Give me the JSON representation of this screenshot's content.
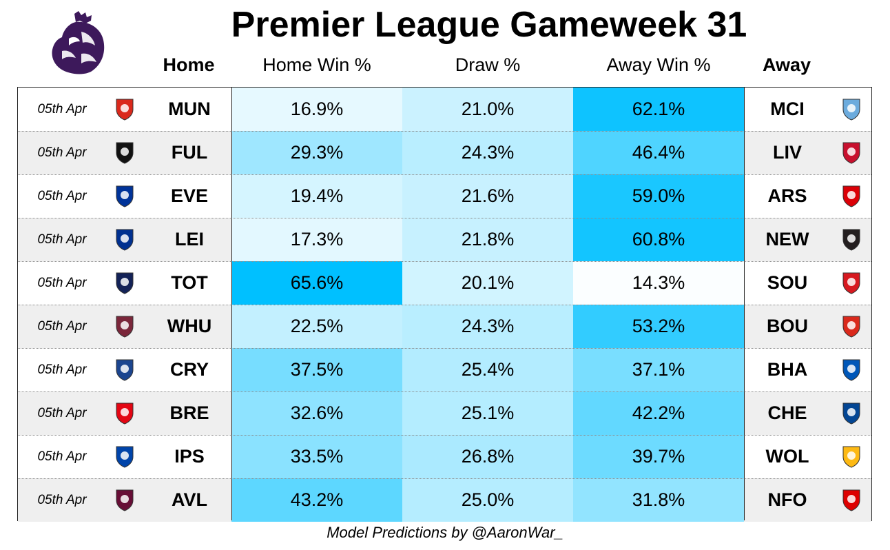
{
  "title": "Premier League Gameweek 31",
  "headers": {
    "home": "Home",
    "home_win": "Home Win %",
    "draw": "Draw %",
    "away_win": "Away Win %",
    "away": "Away"
  },
  "colors": {
    "header_text": "#000000",
    "alt_row": "#efefef",
    "heat_low": "#ffffff",
    "heat_high": "#00c0ff",
    "logo_purple": "#3d195b"
  },
  "matches": [
    {
      "date": "05th Apr",
      "home": "MUN",
      "home_crest": "man-utd-crest",
      "home_win": "16.9%",
      "draw": "21.0%",
      "away_win": "62.1%",
      "away": "MCI",
      "away_crest": "man-city-crest",
      "home_win_v": 16.9,
      "draw_v": 21.0,
      "away_win_v": 62.1
    },
    {
      "date": "05th Apr",
      "home": "FUL",
      "home_crest": "fulham-crest",
      "home_win": "29.3%",
      "draw": "24.3%",
      "away_win": "46.4%",
      "away": "LIV",
      "away_crest": "liverpool-crest",
      "home_win_v": 29.3,
      "draw_v": 24.3,
      "away_win_v": 46.4
    },
    {
      "date": "05th Apr",
      "home": "EVE",
      "home_crest": "everton-crest",
      "home_win": "19.4%",
      "draw": "21.6%",
      "away_win": "59.0%",
      "away": "ARS",
      "away_crest": "arsenal-crest",
      "home_win_v": 19.4,
      "draw_v": 21.6,
      "away_win_v": 59.0
    },
    {
      "date": "05th Apr",
      "home": "LEI",
      "home_crest": "leicester-crest",
      "home_win": "17.3%",
      "draw": "21.8%",
      "away_win": "60.8%",
      "away": "NEW",
      "away_crest": "newcastle-crest",
      "home_win_v": 17.3,
      "draw_v": 21.8,
      "away_win_v": 60.8
    },
    {
      "date": "05th Apr",
      "home": "TOT",
      "home_crest": "tottenham-crest",
      "home_win": "65.6%",
      "draw": "20.1%",
      "away_win": "14.3%",
      "away": "SOU",
      "away_crest": "southampton-crest",
      "home_win_v": 65.6,
      "draw_v": 20.1,
      "away_win_v": 14.3
    },
    {
      "date": "05th Apr",
      "home": "WHU",
      "home_crest": "west-ham-crest",
      "home_win": "22.5%",
      "draw": "24.3%",
      "away_win": "53.2%",
      "away": "BOU",
      "away_crest": "bournemouth-crest",
      "home_win_v": 22.5,
      "draw_v": 24.3,
      "away_win_v": 53.2
    },
    {
      "date": "05th Apr",
      "home": "CRY",
      "home_crest": "crystal-palace-crest",
      "home_win": "37.5%",
      "draw": "25.4%",
      "away_win": "37.1%",
      "away": "BHA",
      "away_crest": "brighton-crest",
      "home_win_v": 37.5,
      "draw_v": 25.4,
      "away_win_v": 37.1
    },
    {
      "date": "05th Apr",
      "home": "BRE",
      "home_crest": "brentford-crest",
      "home_win": "32.6%",
      "draw": "25.1%",
      "away_win": "42.2%",
      "away": "CHE",
      "away_crest": "chelsea-crest",
      "home_win_v": 32.6,
      "draw_v": 25.1,
      "away_win_v": 42.2
    },
    {
      "date": "05th Apr",
      "home": "IPS",
      "home_crest": "ipswich-crest",
      "home_win": "33.5%",
      "draw": "26.8%",
      "away_win": "39.7%",
      "away": "WOL",
      "away_crest": "wolves-crest",
      "home_win_v": 33.5,
      "draw_v": 26.8,
      "away_win_v": 39.7
    },
    {
      "date": "05th Apr",
      "home": "AVL",
      "home_crest": "aston-villa-crest",
      "home_win": "43.2%",
      "draw": "25.0%",
      "away_win": "31.8%",
      "away": "NFO",
      "away_crest": "nottingham-forest-crest",
      "home_win_v": 43.2,
      "draw_v": 25.0,
      "away_win_v": 31.8
    }
  ],
  "footer": "Model Predictions by @AaronWar_"
}
